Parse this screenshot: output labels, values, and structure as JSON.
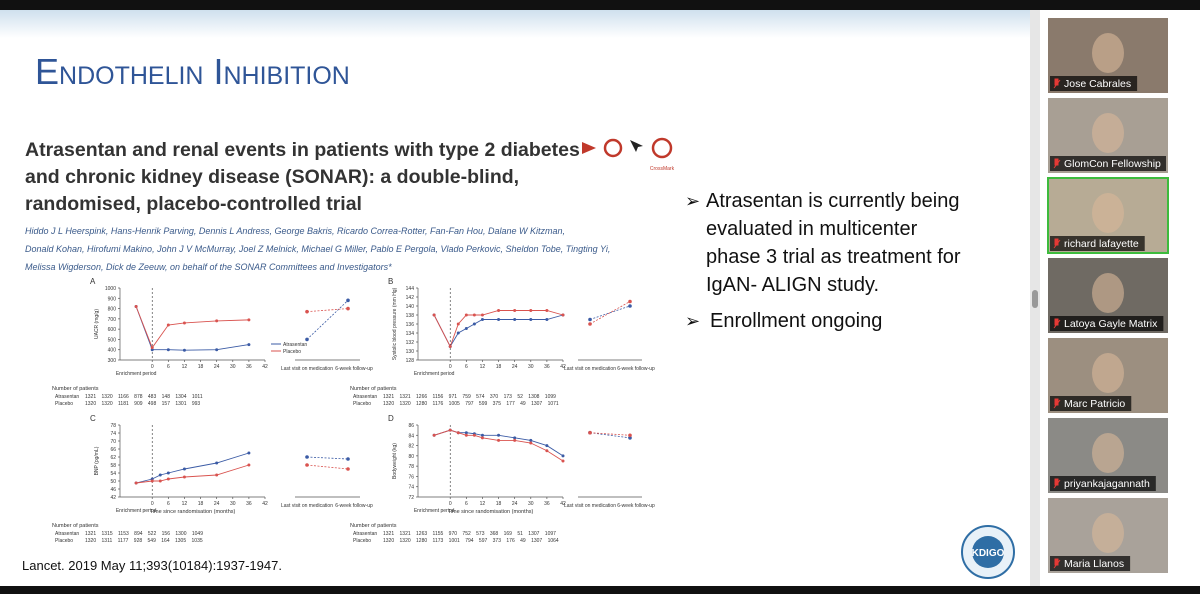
{
  "slide": {
    "title": "Endothelin Inhibition",
    "paper": {
      "title_lines": [
        "Atrasentan and renal events in patients with type 2 diabetes",
        "and chronic kidney disease (SONAR): a double-blind,",
        "randomised, placebo-controlled trial"
      ],
      "crossmark": "CrossMark",
      "authors_lines": [
        "Hiddo J L Heerspink, Hans-Henrik Parving, Dennis L Andress, George Bakris, Ricardo Correa-Rotter, Fan-Fan Hou, Dalane W Kitzman,",
        "Donald Kohan, Hirofumi Makino, John J V McMurray, Joel Z Melnick, Michael G Miller, Pablo E Pergola, Vlado Perkovic, Sheldon Tobe, Tingting Yi,",
        "Melissa Wigderson, Dick de Zeeuw, on behalf of the SONAR Committees and Investigators*"
      ]
    },
    "figure": {
      "xlabel": "Time since randomisation (months)",
      "enrichment_label": "Enrichment period",
      "last_visit_label": "Last visit on medication",
      "follow_up_label": "6-week follow-up",
      "patients_label": "Number of patients",
      "xticks": [
        0,
        6,
        12,
        18,
        24,
        30,
        36,
        42
      ],
      "panels": [
        {
          "label": "A",
          "ylabel": "UACR (mg/g)",
          "ylim": [
            300,
            1000
          ],
          "yticks": [
            300,
            400,
            500,
            600,
            700,
            800,
            900,
            1000
          ],
          "x": [
            -6,
            0,
            6,
            12,
            24,
            36
          ],
          "series": [
            {
              "name": "Atrasentan",
              "color": "#3b5ba5",
              "values": [
                820,
                400,
                400,
                395,
                400,
                450
              ],
              "end_values": [
                500,
                880
              ]
            },
            {
              "name": "Placebo",
              "color": "#d9534f",
              "values": [
                820,
                420,
                640,
                660,
                680,
                690
              ],
              "end_values": [
                770,
                800
              ]
            }
          ],
          "patients": [
            "1321 1320 1166 878 483 148 1304 1011",
            "1320 1320 1181 909 498 157 1301 993"
          ]
        },
        {
          "label": "B",
          "ylabel": "Systolic blood pressure (mm Hg)",
          "ylim": [
            128,
            144
          ],
          "yticks": [
            128,
            130,
            132,
            134,
            136,
            138,
            140,
            142,
            144
          ],
          "x": [
            -6,
            0,
            3,
            6,
            9,
            12,
            18,
            24,
            30,
            36,
            42
          ],
          "series": [
            {
              "name": "Atrasentan",
              "color": "#3b5ba5",
              "values": [
                138,
                131,
                134,
                135,
                136,
                137,
                137,
                137,
                137,
                137,
                138
              ],
              "end_values": [
                137,
                140
              ]
            },
            {
              "name": "Placebo",
              "color": "#d9534f",
              "values": [
                138,
                131,
                136,
                138,
                138,
                138,
                139,
                139,
                139,
                139,
                138
              ],
              "end_values": [
                136,
                141
              ]
            }
          ],
          "patients": [
            "1321 1321 1266 1156 971 759 574 370 173 52 1308 1099",
            "1320 1320 1280 1176 1005 797 599 375 177 49 1307 1071"
          ]
        },
        {
          "label": "C",
          "ylabel": "BNP (pg/mL)",
          "ylim": [
            42,
            78
          ],
          "yticks": [
            42,
            46,
            50,
            54,
            58,
            62,
            66,
            70,
            74,
            78
          ],
          "x": [
            -6,
            0,
            3,
            6,
            12,
            24,
            36
          ],
          "series": [
            {
              "name": "Atrasentan",
              "color": "#3b5ba5",
              "values": [
                49,
                51,
                53,
                54,
                56,
                59,
                64
              ],
              "end_values": [
                62,
                61
              ]
            },
            {
              "name": "Placebo",
              "color": "#d9534f",
              "values": [
                49,
                50,
                50,
                51,
                52,
                53,
                58
              ],
              "end_values": [
                58,
                56
              ]
            }
          ],
          "patients": [
            "1321 1315 1153 894 522 156 1300 1049",
            "1320 1311 1177 928 549 164 1305 1035"
          ]
        },
        {
          "label": "D",
          "ylabel": "Bodyweight (kg)",
          "ylim": [
            72,
            86
          ],
          "yticks": [
            72,
            74,
            76,
            78,
            80,
            82,
            84,
            86
          ],
          "x": [
            -6,
            0,
            3,
            6,
            9,
            12,
            18,
            24,
            30,
            36,
            42
          ],
          "series": [
            {
              "name": "Atrasentan",
              "color": "#3b5ba5",
              "values": [
                84,
                85,
                84.5,
                84.5,
                84.3,
                84,
                84,
                83.5,
                83,
                82,
                80
              ],
              "end_values": [
                84.5,
                83.5
              ]
            },
            {
              "name": "Placebo",
              "color": "#d9534f",
              "values": [
                84,
                85,
                84.5,
                84,
                84,
                83.5,
                83,
                83,
                82.5,
                81,
                79
              ],
              "end_values": [
                84.5,
                84
              ]
            }
          ],
          "patients": [
            "1321 1321 1263 1155 970 752 573 368 169 51 1307 1097",
            "1320 1320 1280 1173 1001 794 597 373 176 49 1307 1064"
          ]
        }
      ]
    },
    "bullets": [
      {
        "lines": [
          "Atrasentan is currently being",
          "evaluated in multicenter",
          "phase 3 trial as treatment for",
          "IgAN- ALIGN study."
        ]
      },
      {
        "lines": [
          "Enrollment ongoing"
        ]
      }
    ],
    "citation": "Lancet. 2019 May 11;393(10184):1937-1947.",
    "logo": "KDIGO"
  },
  "participants": [
    "Jose Cabrales",
    "GlomCon Fellowship",
    "richard lafayette",
    "Latoya Gayle Matrix",
    "Marc Patricio",
    "priyankajagannath",
    "Maria Llanos"
  ]
}
